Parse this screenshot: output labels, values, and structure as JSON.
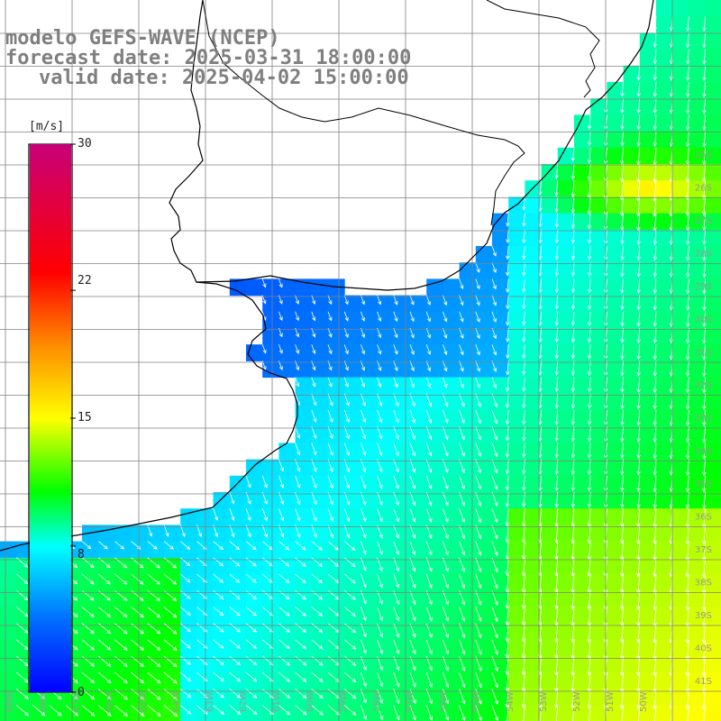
{
  "title": {
    "line1": "modelo GEFS-WAVE (NCEP)",
    "line2": "forecast date: 2025-03-31 18:00:00",
    "line3": "valid date: 2025-04-02 15:00:00"
  },
  "colorbar": {
    "unit": "[m/s]",
    "ticks": [
      "30",
      "22",
      "15",
      "8",
      "0"
    ],
    "range": [
      0,
      30
    ]
  },
  "axis_labels": {
    "latitudes": [
      "25S",
      "26S",
      "27S",
      "28S",
      "29S",
      "30S",
      "31S",
      "32S",
      "33S",
      "34S",
      "35S",
      "36S",
      "37S",
      "38S",
      "39S",
      "40S",
      "41S"
    ],
    "longitudes": [
      "69W",
      "68W",
      "67W",
      "66W",
      "65W",
      "64W",
      "63W",
      "62W",
      "61W",
      "60W",
      "59W",
      "58W",
      "57W",
      "56W",
      "55W",
      "54W",
      "53W",
      "52W",
      "51W",
      "50W"
    ]
  },
  "colors": {
    "land": "#ffffff",
    "grid": "#808080",
    "coast": "#000000",
    "arrows": "#ffffff",
    "text": "#7f7f7f"
  }
}
